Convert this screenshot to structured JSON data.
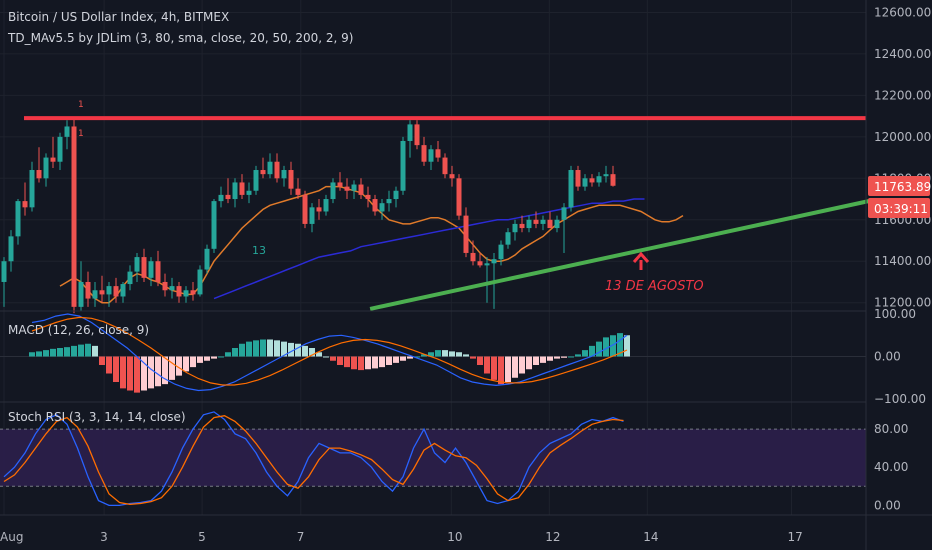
{
  "header": {
    "title": "Bitcoin / US Dollar Index, 4h, BITMEX",
    "indicator": "TD_MAv5.5 by JDLim (3, 80, sma, close, 20, 50, 200, 2, 9)"
  },
  "price_badges": {
    "last": "11763.89",
    "countdown": "03:39:11"
  },
  "annotation": {
    "text": "13 DE AGOSTO",
    "label_13": "13"
  },
  "td_counts": {
    "top_1": "1",
    "mid_1": "1"
  },
  "macd": {
    "title": "MACD (12, 26, close, 9)"
  },
  "stoch": {
    "title": "Stoch RSI (3, 3, 14, 14, close)"
  },
  "chart_data": [
    {
      "type": "candlestick",
      "title": "Bitcoin / US Dollar Index, 4h, BITMEX",
      "ylim": [
        11160,
        12660
      ],
      "yticks": [
        "11200.00",
        "11400.00",
        "11600.00",
        "11800.00",
        "12000.00",
        "12200.00",
        "12400.00",
        "12600.00"
      ],
      "ytick_values": [
        11200,
        11400,
        11600,
        11800,
        12000,
        12200,
        12400,
        12600
      ],
      "xticks": [
        "Aug",
        "3",
        "5",
        "7",
        "10",
        "12",
        "14",
        "17"
      ],
      "xtick_index": [
        0,
        14.3,
        28.3,
        42.4,
        63.9,
        77.9,
        91.9,
        112.5
      ],
      "candle_colors": {
        "up": "#26a69a",
        "down": "#ef5350"
      },
      "candles": [
        [
          11300,
          11420,
          11180,
          11400
        ],
        [
          11400,
          11550,
          11350,
          11520
        ],
        [
          11520,
          11700,
          11480,
          11690
        ],
        [
          11690,
          11780,
          11620,
          11660
        ],
        [
          11660,
          11880,
          11640,
          11840
        ],
        [
          11840,
          11950,
          11780,
          11800
        ],
        [
          11800,
          11920,
          11760,
          11900
        ],
        [
          11900,
          12000,
          11850,
          11880
        ],
        [
          11880,
          12020,
          11840,
          12000
        ],
        [
          12000,
          12080,
          11940,
          12050
        ],
        [
          12050,
          12090,
          11150,
          11180
        ],
        [
          11180,
          11400,
          11160,
          11300
        ],
        [
          11300,
          11350,
          11180,
          11220
        ],
        [
          11220,
          11300,
          11180,
          11260
        ],
        [
          11260,
          11330,
          11200,
          11240
        ],
        [
          11240,
          11300,
          11180,
          11280
        ],
        [
          11280,
          11320,
          11200,
          11230
        ],
        [
          11230,
          11300,
          11200,
          11290
        ],
        [
          11290,
          11380,
          11260,
          11350
        ],
        [
          11350,
          11440,
          11300,
          11420
        ],
        [
          11420,
          11460,
          11300,
          11320
        ],
        [
          11320,
          11420,
          11280,
          11400
        ],
        [
          11400,
          11450,
          11280,
          11300
        ],
        [
          11300,
          11340,
          11230,
          11260
        ],
        [
          11260,
          11320,
          11220,
          11280
        ],
        [
          11280,
          11300,
          11200,
          11230
        ],
        [
          11230,
          11280,
          11200,
          11260
        ],
        [
          11260,
          11300,
          11210,
          11240
        ],
        [
          11240,
          11380,
          11230,
          11360
        ],
        [
          11360,
          11480,
          11340,
          11460
        ],
        [
          11460,
          11700,
          11440,
          11690
        ],
        [
          11690,
          11760,
          11660,
          11720
        ],
        [
          11720,
          11800,
          11680,
          11700
        ],
        [
          11700,
          11800,
          11660,
          11780
        ],
        [
          11780,
          11820,
          11700,
          11720
        ],
        [
          11720,
          11780,
          11680,
          11740
        ],
        [
          11740,
          11860,
          11720,
          11840
        ],
        [
          11840,
          11900,
          11800,
          11820
        ],
        [
          11820,
          11920,
          11800,
          11880
        ],
        [
          11880,
          11920,
          11780,
          11800
        ],
        [
          11800,
          11860,
          11760,
          11840
        ],
        [
          11840,
          11880,
          11720,
          11750
        ],
        [
          11750,
          11800,
          11700,
          11720
        ],
        [
          11720,
          11740,
          11560,
          11580
        ],
        [
          11580,
          11680,
          11540,
          11660
        ],
        [
          11660,
          11700,
          11600,
          11640
        ],
        [
          11640,
          11720,
          11620,
          11700
        ],
        [
          11700,
          11800,
          11680,
          11780
        ],
        [
          11780,
          11830,
          11740,
          11760
        ],
        [
          11760,
          11800,
          11700,
          11740
        ],
        [
          11740,
          11790,
          11700,
          11770
        ],
        [
          11770,
          11800,
          11700,
          11720
        ],
        [
          11720,
          11760,
          11660,
          11700
        ],
        [
          11700,
          11720,
          11620,
          11640
        ],
        [
          11640,
          11700,
          11600,
          11680
        ],
        [
          11680,
          11740,
          11640,
          11700
        ],
        [
          11700,
          11760,
          11660,
          11740
        ],
        [
          11740,
          12000,
          11720,
          11980
        ],
        [
          11980,
          12080,
          11900,
          12060
        ],
        [
          12060,
          12080,
          11940,
          11960
        ],
        [
          11960,
          12000,
          11860,
          11880
        ],
        [
          11880,
          11960,
          11840,
          11940
        ],
        [
          11940,
          11980,
          11880,
          11900
        ],
        [
          11900,
          11920,
          11800,
          11820
        ],
        [
          11820,
          11860,
          11760,
          11800
        ],
        [
          11800,
          11820,
          11600,
          11620
        ],
        [
          11620,
          11660,
          11420,
          11440
        ],
        [
          11440,
          11500,
          11380,
          11400
        ],
        [
          11400,
          11440,
          11370,
          11380
        ],
        [
          11380,
          11420,
          11200,
          11390
        ],
        [
          11390,
          11440,
          11170,
          11410
        ],
        [
          11410,
          11500,
          11380,
          11480
        ],
        [
          11480,
          11560,
          11460,
          11540
        ],
        [
          11540,
          11600,
          11500,
          11580
        ],
        [
          11580,
          11620,
          11540,
          11560
        ],
        [
          11560,
          11620,
          11540,
          11600
        ],
        [
          11600,
          11640,
          11560,
          11580
        ],
        [
          11580,
          11620,
          11550,
          11600
        ],
        [
          11600,
          11640,
          11570,
          11560
        ],
        [
          11560,
          11620,
          11540,
          11600
        ],
        [
          11600,
          11680,
          11440,
          11660
        ],
        [
          11660,
          11860,
          11640,
          11840
        ],
        [
          11840,
          11860,
          11740,
          11760
        ],
        [
          11760,
          11820,
          11740,
          11800
        ],
        [
          11800,
          11820,
          11760,
          11780
        ],
        [
          11780,
          11830,
          11760,
          11810
        ],
        [
          11810,
          11860,
          11780,
          11820
        ],
        [
          11820,
          11860,
          11760,
          11764
        ]
      ],
      "resistance_line": {
        "y": 12090,
        "x_index": [
          0,
          123.5
        ]
      },
      "support_line": {
        "y_start": 11170,
        "y_end": 11690,
        "x_index": [
          52.3,
          123.5
        ]
      },
      "ma_fast": [
        11280,
        11300,
        11320,
        11300,
        11260,
        11220,
        11200,
        11200,
        11230,
        11280,
        11320,
        11340,
        11330,
        11310,
        11300,
        11280,
        11260,
        11250,
        11240,
        11240,
        11280,
        11340,
        11400,
        11440,
        11480,
        11520,
        11560,
        11590,
        11620,
        11650,
        11670,
        11680,
        11690,
        11700,
        11710,
        11720,
        11730,
        11740,
        11760,
        11760,
        11760,
        11750,
        11740,
        11730,
        11700,
        11660,
        11630,
        11600,
        11590,
        11580,
        11580,
        11590,
        11600,
        11610,
        11610,
        11600,
        11580,
        11560,
        11520,
        11480,
        11440,
        11410,
        11400,
        11400,
        11410,
        11430,
        11460,
        11480,
        11500,
        11520,
        11550,
        11580,
        11600,
        11620,
        11640,
        11650,
        11660,
        11670,
        11670,
        11670,
        11670,
        11660,
        11650,
        11640,
        11620,
        11600,
        11590,
        11590,
        11600,
        11620
      ],
      "ma_slow": [
        11220,
        11240,
        11260,
        11280,
        11300,
        11320,
        11340,
        11360,
        11380,
        11400,
        11420,
        11430,
        11440,
        11450,
        11470,
        11480,
        11490,
        11500,
        11510,
        11520,
        11530,
        11540,
        11550,
        11560,
        11570,
        11580,
        11590,
        11600,
        11600,
        11610,
        11620,
        11630,
        11640,
        11650,
        11660,
        11670,
        11680,
        11680,
        11690,
        11690,
        11700,
        11700
      ],
      "macd_ylim": [
        -100,
        100
      ],
      "macd_yticks": [
        "100.00",
        "0.00",
        "−100.00"
      ],
      "macd_ytick_values": [
        100,
        0,
        -100
      ],
      "macd_hist": [
        10,
        12,
        15,
        18,
        20,
        22,
        25,
        28,
        30,
        25,
        -20,
        -40,
        -60,
        -75,
        -80,
        -85,
        -80,
        -75,
        -70,
        -65,
        -55,
        -45,
        -35,
        -25,
        -15,
        -10,
        -5,
        0,
        10,
        20,
        30,
        35,
        38,
        40,
        40,
        38,
        35,
        32,
        30,
        25,
        20,
        10,
        0,
        -10,
        -20,
        -25,
        -30,
        -32,
        -30,
        -28,
        -25,
        -20,
        -15,
        -10,
        -5,
        0,
        5,
        10,
        15,
        15,
        12,
        10,
        5,
        -5,
        -20,
        -40,
        -55,
        -65,
        -60,
        -50,
        -40,
        -30,
        -20,
        -15,
        -10,
        -5,
        -3,
        0,
        5,
        15,
        25,
        35,
        45,
        50,
        55,
        50
      ],
      "macd_line": [
        80,
        85,
        95,
        100,
        95,
        80,
        60,
        40,
        20,
        -5,
        -30,
        -50,
        -65,
        -75,
        -80,
        -78,
        -70,
        -60,
        -45,
        -30,
        -15,
        0,
        15,
        30,
        40,
        48,
        50,
        45,
        38,
        30,
        20,
        10,
        0,
        -10,
        -20,
        -35,
        -50,
        -60,
        -65,
        -68,
        -65,
        -60,
        -50,
        -40,
        -30,
        -20,
        -10,
        0,
        15,
        30,
        50
      ],
      "macd_signal": [
        60,
        70,
        80,
        88,
        92,
        90,
        82,
        70,
        55,
        38,
        20,
        0,
        -20,
        -38,
        -52,
        -62,
        -67,
        -67,
        -63,
        -55,
        -45,
        -32,
        -18,
        -4,
        10,
        22,
        32,
        38,
        40,
        38,
        33,
        25,
        15,
        5,
        -5,
        -17,
        -30,
        -42,
        -52,
        -58,
        -62,
        -62,
        -59,
        -53,
        -45,
        -36,
        -27,
        -18,
        -8,
        3,
        15
      ],
      "stoch_ylim": [
        -8,
        100
      ],
      "stoch_yticks": [
        "80.00",
        "40.00",
        "0.00"
      ],
      "stoch_ytick_values": [
        80,
        40,
        0
      ],
      "stoch_bands": [
        20,
        80
      ],
      "stoch_k": [
        30,
        40,
        55,
        75,
        90,
        95,
        85,
        60,
        30,
        5,
        0,
        0,
        2,
        3,
        5,
        15,
        35,
        60,
        80,
        95,
        98,
        90,
        75,
        70,
        55,
        35,
        20,
        10,
        25,
        50,
        65,
        60,
        55,
        55,
        50,
        40,
        25,
        15,
        30,
        60,
        80,
        55,
        45,
        60,
        45,
        25,
        5,
        2,
        5,
        15,
        40,
        55,
        65,
        70,
        75,
        85,
        90,
        88,
        92,
        88
      ],
      "stoch_d": [
        25,
        32,
        45,
        60,
        75,
        88,
        92,
        82,
        62,
        35,
        12,
        3,
        1,
        2,
        4,
        8,
        20,
        40,
        62,
        82,
        92,
        94,
        88,
        78,
        65,
        50,
        35,
        22,
        18,
        30,
        48,
        60,
        60,
        57,
        53,
        48,
        38,
        27,
        22,
        38,
        58,
        65,
        58,
        52,
        50,
        42,
        28,
        12,
        5,
        8,
        22,
        40,
        55,
        63,
        70,
        78,
        85,
        88,
        90,
        89
      ]
    }
  ]
}
